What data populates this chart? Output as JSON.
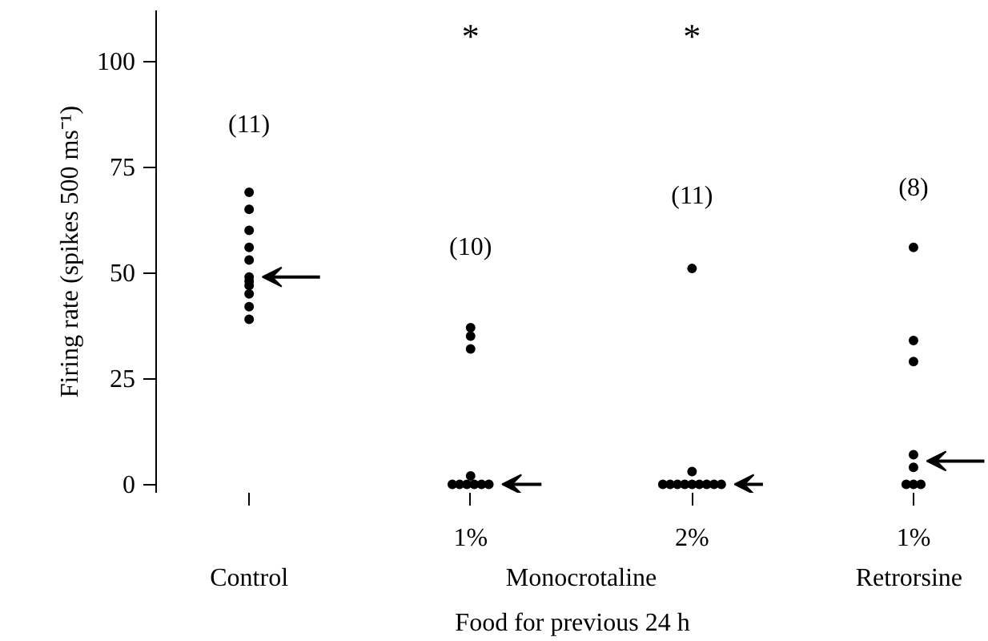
{
  "chart_data": {
    "type": "scatter",
    "xlabel": "Food for previous 24 h",
    "ylabel": "Firing rate (spikes 500 ms⁻¹)",
    "categories": [
      null,
      "1%",
      "2%",
      "1%"
    ],
    "ylim": [
      -2,
      112
    ],
    "yticks": [
      0,
      25,
      50,
      75,
      100
    ],
    "series": [
      {
        "color": "#000000",
        "values": [
          69,
          37,
          51,
          56
        ]
      },
      {
        "color": "#000000",
        "values": [
          65,
          35,
          3,
          34
        ]
      },
      {
        "color": "#000000",
        "values": [
          60,
          32,
          0,
          29
        ]
      },
      {
        "color": "#000000",
        "values": [
          56,
          2,
          0,
          7
        ]
      },
      {
        "color": "#000000",
        "values": [
          53,
          0,
          0,
          4
        ]
      },
      {
        "color": "#000000",
        "values": [
          49,
          0,
          0,
          0
        ]
      },
      {
        "color": "#000000",
        "values": [
          48,
          0,
          0,
          0
        ]
      },
      {
        "color": "#000000",
        "values": [
          47,
          0,
          0,
          0
        ]
      },
      {
        "color": "#000000",
        "values": [
          45,
          0,
          0,
          null
        ]
      },
      {
        "color": "#000000",
        "values": [
          42,
          0,
          0,
          null
        ]
      },
      {
        "color": "#000000",
        "values": [
          39,
          null,
          0,
          null
        ]
      }
    ],
    "marker": "circle",
    "grid": false,
    "annotations": [
      "(11)",
      "(10)",
      "(11)",
      "(8)",
      "*",
      "*",
      "Control",
      "Monocrotaline",
      "Retrorsine"
    ]
  }
}
